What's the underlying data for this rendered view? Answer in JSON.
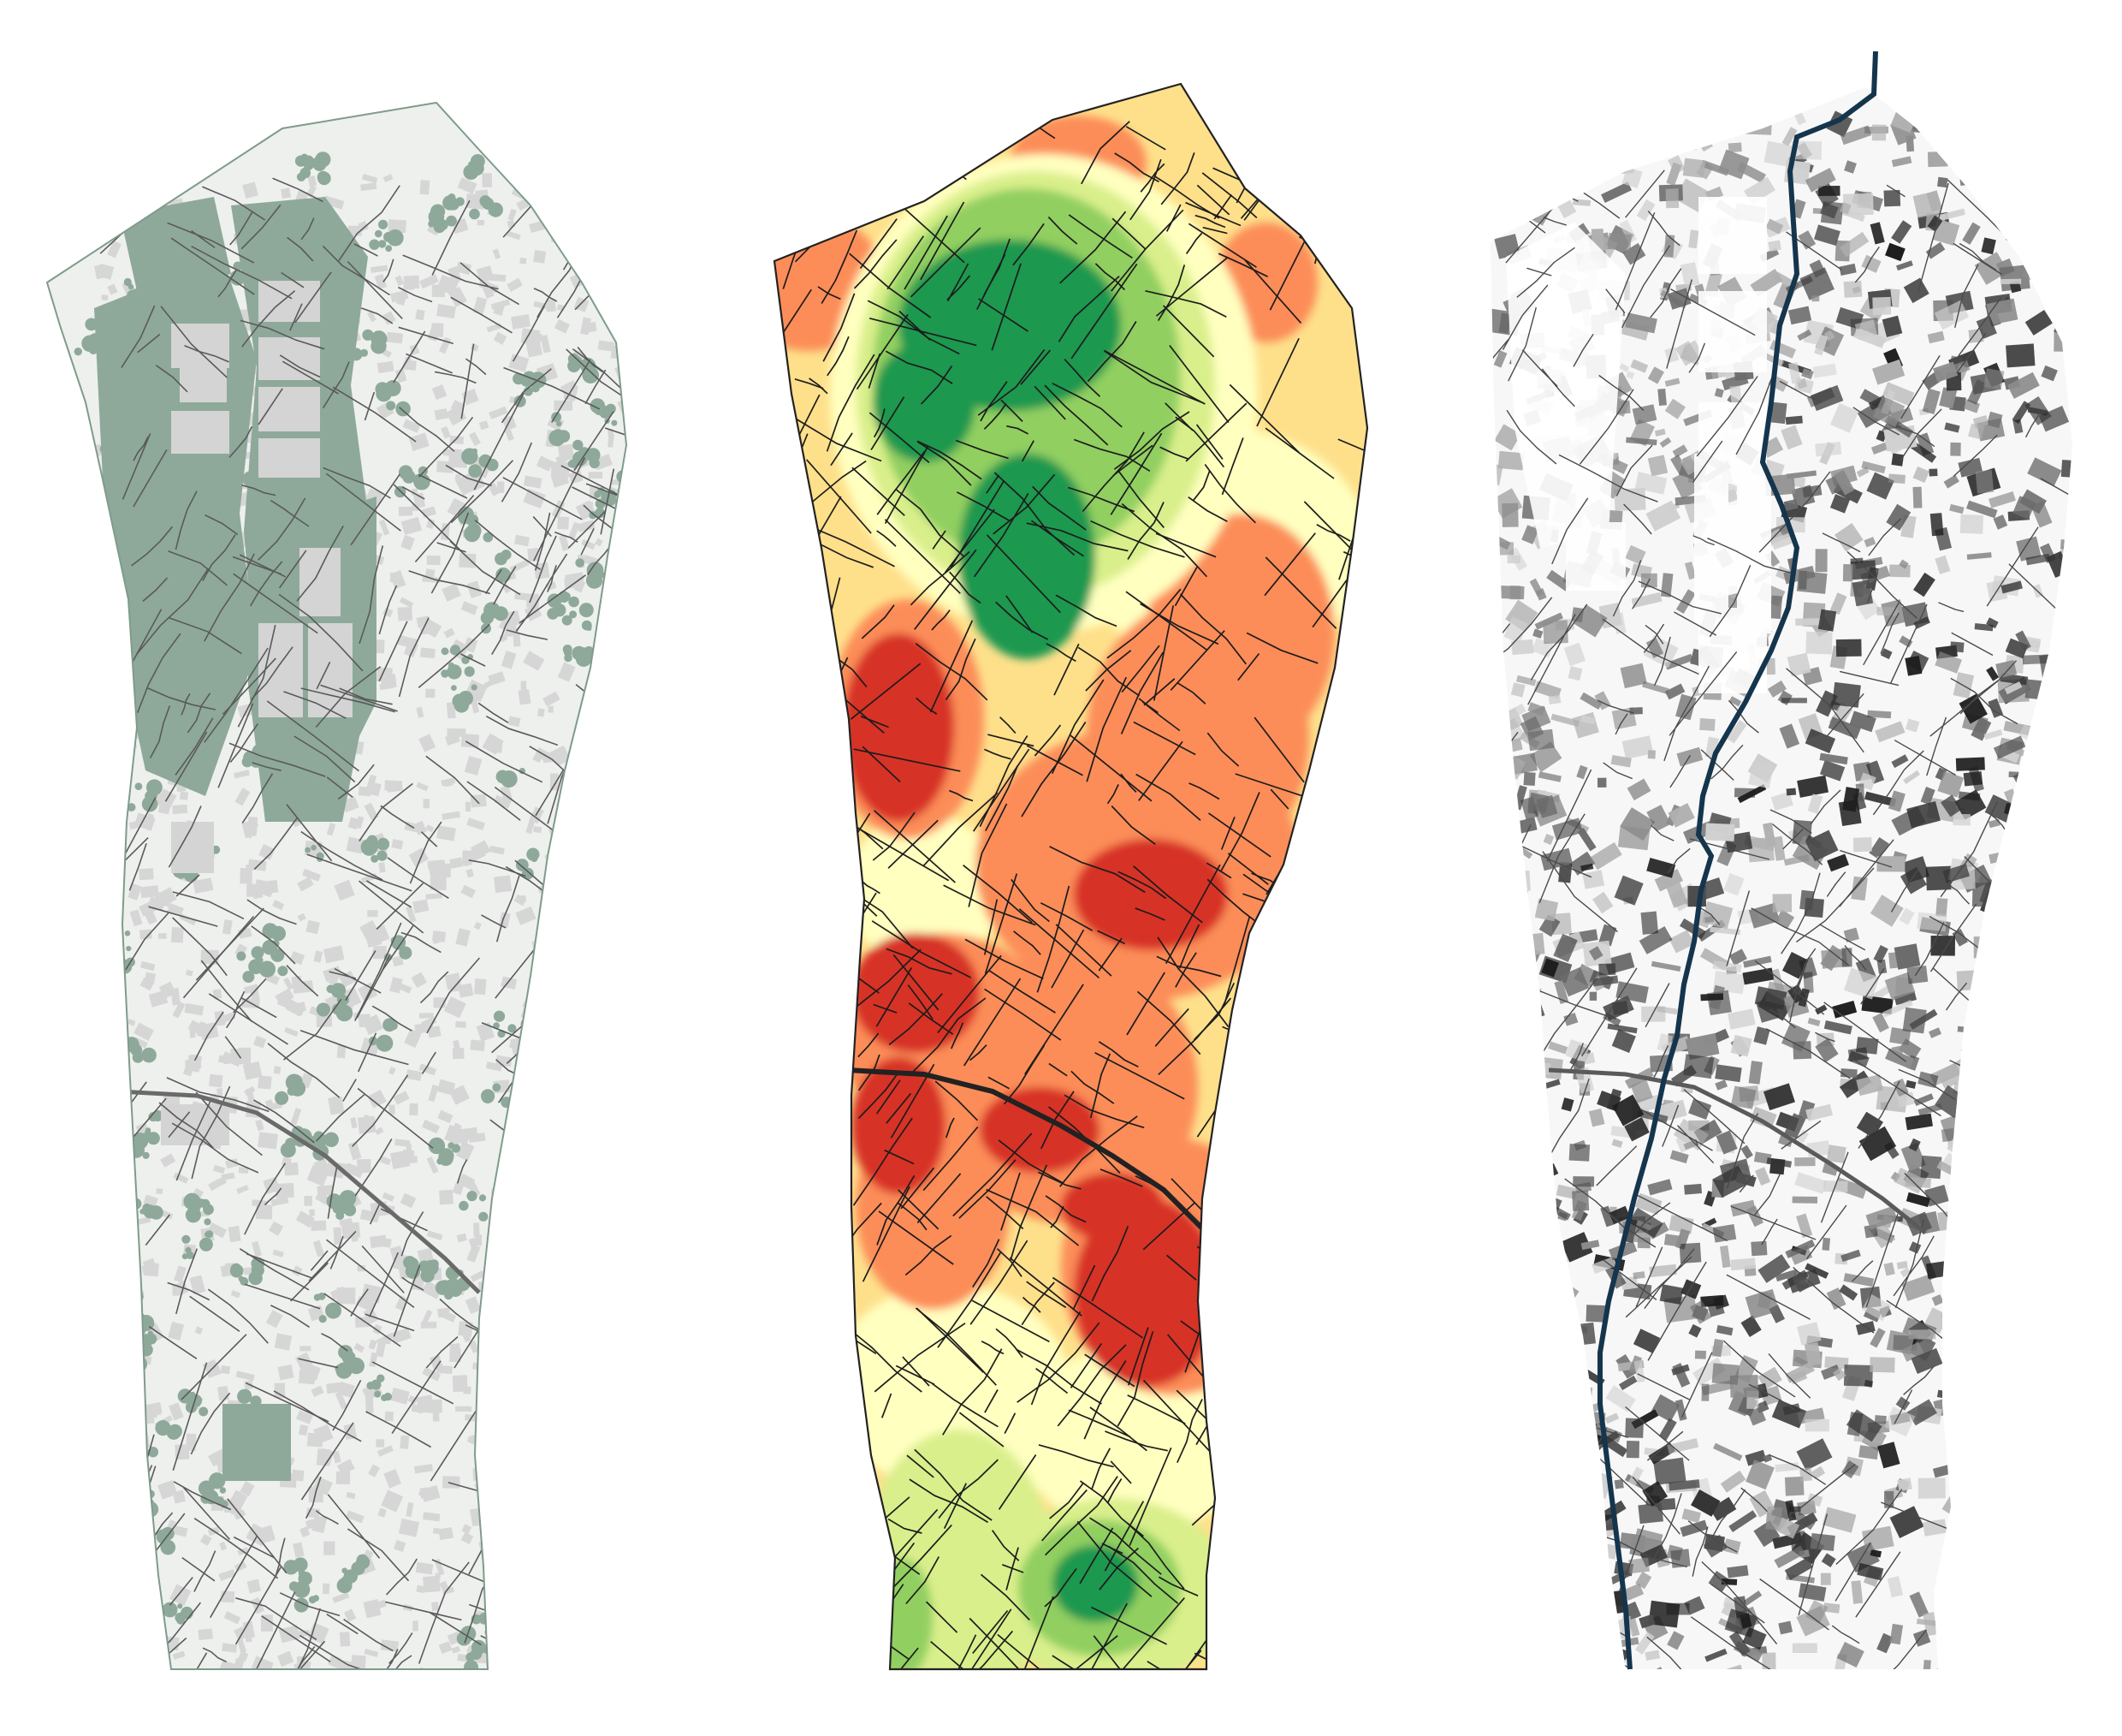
{
  "maps": [
    {
      "id": "vegetation",
      "style": "buildings-and-tree-canopy"
    },
    {
      "id": "heatmap",
      "style": "density-heatmap",
      "palette": [
        "#1a9850",
        "#91cf60",
        "#d9ef8b",
        "#fee08b",
        "#fc8d59",
        "#d73027"
      ]
    },
    {
      "id": "shadow",
      "style": "grayscale-shadow-with-watercourse"
    }
  ],
  "colors": {
    "canopy": "#8ea99a",
    "building": "#d6d6d6",
    "street": "#2a2a2a",
    "water": "#1d3f57",
    "background": "#ffffff"
  }
}
